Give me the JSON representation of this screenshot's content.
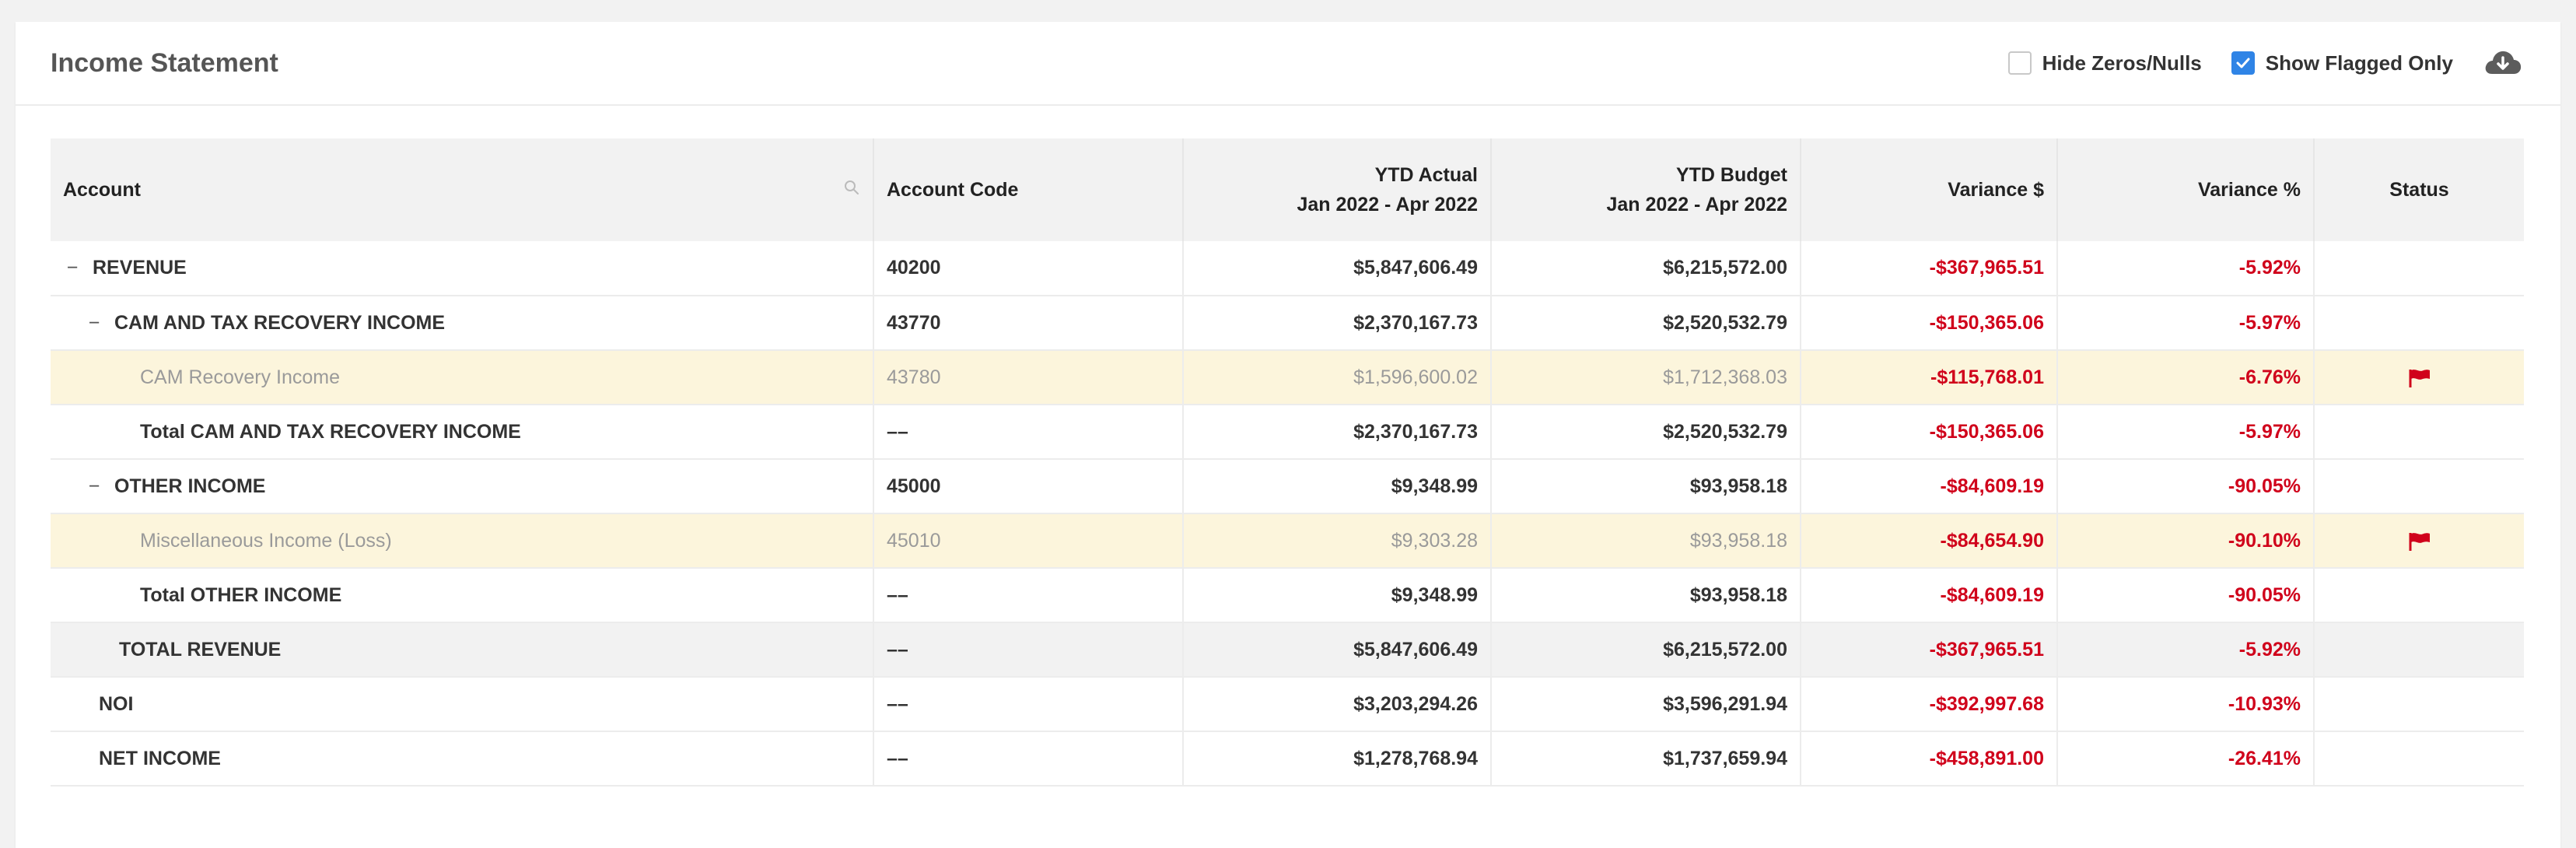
{
  "header": {
    "title": "Income Statement",
    "hide_zeros_label": "Hide Zeros/Nulls",
    "hide_zeros_checked": false,
    "show_flagged_label": "Show Flagged Only",
    "show_flagged_checked": true,
    "download_icon": "cloud-download-icon"
  },
  "table": {
    "columns": {
      "account": "Account",
      "account_code": "Account Code",
      "ytd_actual": "YTD Actual",
      "ytd_actual_period": "Jan 2022 - Apr 2022",
      "ytd_budget": "YTD Budget",
      "ytd_budget_period": "Jan 2022 - Apr 2022",
      "variance_dollar": "Variance $",
      "variance_pct": "Variance %",
      "status": "Status"
    },
    "toggle_symbol": "−",
    "rows": [
      {
        "account": "REVENUE",
        "code": "40200",
        "actual": "$5,847,606.49",
        "budget": "$6,215,572.00",
        "var_dollar": "-$367,965.51",
        "var_pct": "-5.92%",
        "flagged": false
      },
      {
        "account": "CAM AND TAX RECOVERY INCOME",
        "code": "43770",
        "actual": "$2,370,167.73",
        "budget": "$2,520,532.79",
        "var_dollar": "-$150,365.06",
        "var_pct": "-5.97%",
        "flagged": false
      },
      {
        "account": "CAM Recovery Income",
        "code": "43780",
        "actual": "$1,596,600.02",
        "budget": "$1,712,368.03",
        "var_dollar": "-$115,768.01",
        "var_pct": "-6.76%",
        "flagged": true
      },
      {
        "account": "Total CAM AND TAX RECOVERY INCOME",
        "code": "––",
        "actual": "$2,370,167.73",
        "budget": "$2,520,532.79",
        "var_dollar": "-$150,365.06",
        "var_pct": "-5.97%",
        "flagged": false
      },
      {
        "account": "OTHER INCOME",
        "code": "45000",
        "actual": "$9,348.99",
        "budget": "$93,958.18",
        "var_dollar": "-$84,609.19",
        "var_pct": "-90.05%",
        "flagged": false
      },
      {
        "account": "Miscellaneous Income (Loss)",
        "code": "45010",
        "actual": "$9,303.28",
        "budget": "$93,958.18",
        "var_dollar": "-$84,654.90",
        "var_pct": "-90.10%",
        "flagged": true
      },
      {
        "account": "Total OTHER INCOME",
        "code": "––",
        "actual": "$9,348.99",
        "budget": "$93,958.18",
        "var_dollar": "-$84,609.19",
        "var_pct": "-90.05%",
        "flagged": false
      },
      {
        "account": "TOTAL REVENUE",
        "code": "––",
        "actual": "$5,847,606.49",
        "budget": "$6,215,572.00",
        "var_dollar": "-$367,965.51",
        "var_pct": "-5.92%",
        "flagged": false
      },
      {
        "account": "NOI",
        "code": "––",
        "actual": "$3,203,294.26",
        "budget": "$3,596,291.94",
        "var_dollar": "-$392,997.68",
        "var_pct": "-10.93%",
        "flagged": false
      },
      {
        "account": "NET INCOME",
        "code": "––",
        "actual": "$1,278,768.94",
        "budget": "$1,737,659.94",
        "var_dollar": "-$458,891.00",
        "var_pct": "-26.41%",
        "flagged": false
      }
    ]
  },
  "colors": {
    "negative": "#d0021b",
    "flag": "#d0021b",
    "flagged_row_bg": "#fcf5dc",
    "checkbox_checked": "#2f84e6"
  }
}
